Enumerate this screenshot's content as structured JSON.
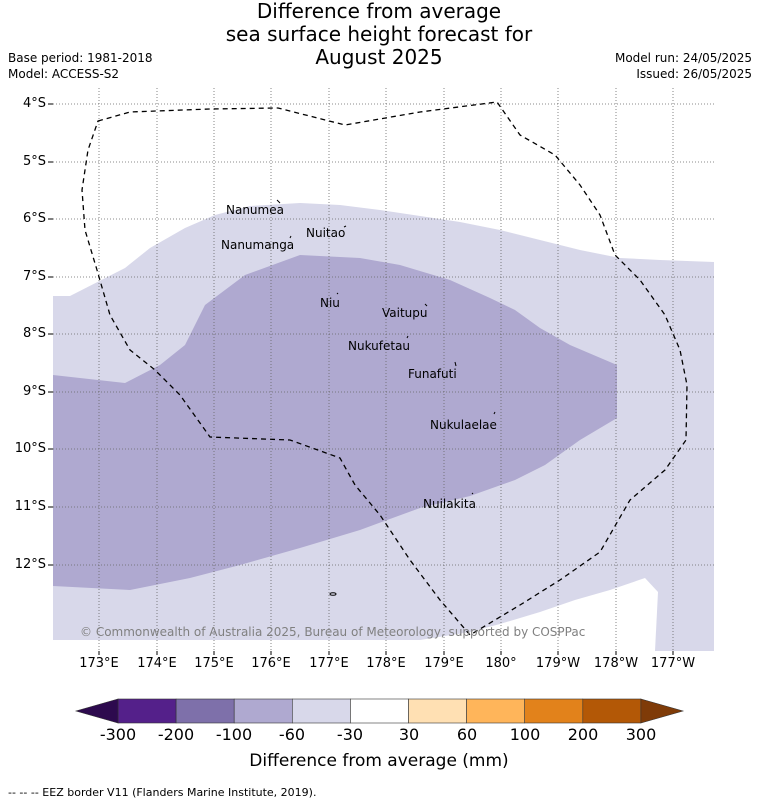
{
  "title": {
    "line1": "Difference from average",
    "line2": "sea surface height forecast for",
    "line3": "August 2025"
  },
  "meta": {
    "base_period": "Base period: 1981-2018",
    "model": "Model: ACCESS-S2",
    "model_run": "Model run: 24/05/2025",
    "issued": "Issued: 26/05/2025"
  },
  "axes": {
    "lat_ticks": [
      "4°S",
      "5°S",
      "6°S",
      "7°S",
      "8°S",
      "9°S",
      "10°S",
      "11°S",
      "12°S"
    ],
    "lon_ticks": [
      "173°E",
      "174°E",
      "175°E",
      "176°E",
      "177°E",
      "178°E",
      "179°E",
      "180°",
      "179°W",
      "178°W",
      "177°W"
    ]
  },
  "places": [
    {
      "name": "Nanumea"
    },
    {
      "name": "Nuitao"
    },
    {
      "name": "Nanumanga"
    },
    {
      "name": "Niu"
    },
    {
      "name": "Vaitupu"
    },
    {
      "name": "Nukufetau"
    },
    {
      "name": "Funafuti"
    },
    {
      "name": "Nukulaelae"
    },
    {
      "name": "Nuilakita"
    }
  ],
  "copyright": "© Commonwealth of Australia 2025, Bureau of Meteorology, supported by COSPPac",
  "colorbar": {
    "ticks": [
      "-300",
      "-200",
      "-100",
      "-60",
      "-30",
      "30",
      "60",
      "100",
      "200",
      "300"
    ],
    "label": "Difference from average (mm)",
    "colors": {
      "below_min": "#2d0a4e",
      "bin_1": "#54208a",
      "bin_2": "#7e70aa",
      "bin_3": "#afa9d0",
      "bin_4": "#d8d8ea",
      "bin_5": "#ffffff",
      "bin_6": "#ffe0b3",
      "bin_7": "#ffb55a",
      "bin_8": "#e2821b",
      "bin_9": "#b35806",
      "above_max": "#7f3b08"
    }
  },
  "map_colors": {
    "band_light": "#d8d8ea",
    "band_mid": "#afa9d0",
    "land_none": "#ffffff"
  },
  "footnote": "--  --  -- EEZ border V11 (Flanders Marine Institute, 2019)."
}
